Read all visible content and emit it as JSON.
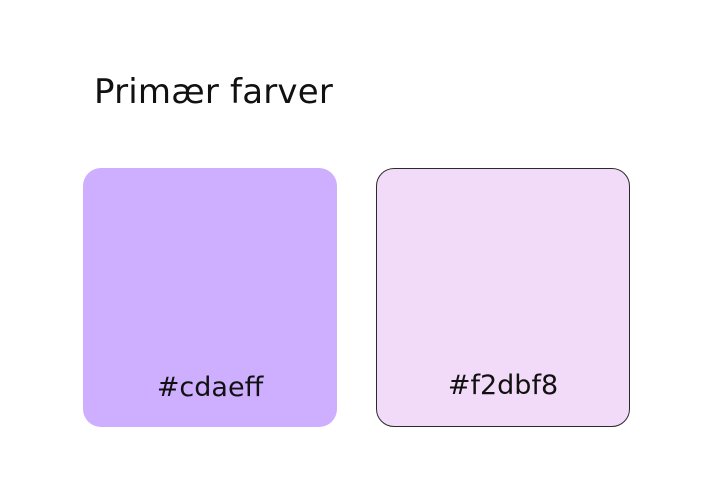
{
  "title": "Primær farver",
  "swatches": [
    {
      "label": "#cdaeff",
      "color": "#cdaeff"
    },
    {
      "label": "#f2dbf8",
      "color": "#f2dbf8"
    }
  ]
}
